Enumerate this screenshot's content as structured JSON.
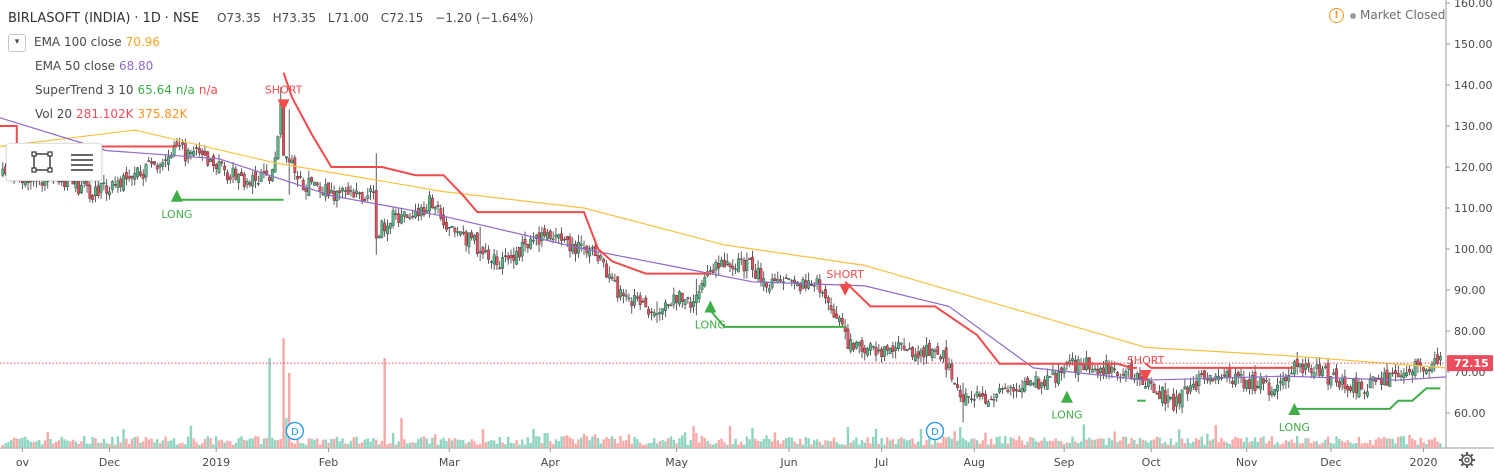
{
  "legend": {
    "symbol": "BIRLASOFT (INDIA)",
    "interval": "1D",
    "exchange": "NSE",
    "ohlc": {
      "o": "O73.35",
      "h": "H73.35",
      "l": "L71.00",
      "c": "C72.15",
      "chg": "−1.20 (−1.64%)"
    },
    "ema100": {
      "label": "EMA 100 close",
      "value": "70.96"
    },
    "ema50": {
      "label": "EMA 50 close",
      "value": "68.80"
    },
    "supertrend": {
      "label": "SuperTrend 3 10",
      "value": "65.64",
      "v2": "n/a",
      "v3": "n/a"
    },
    "vol": {
      "label": "Vol 20",
      "v1": "281.102K",
      "v2": "375.82K"
    }
  },
  "status": {
    "market": "Market Closed",
    "alert_icon": "alert-icon"
  },
  "colors": {
    "up": "#53b987",
    "down": "#eb4d5c",
    "ema100": "#f5c242",
    "ema50": "#8e6bc9",
    "st_up": "#3fae49",
    "st_down": "#f04c4c",
    "vol_up": "#8fd3c1",
    "vol_down": "#f7a9a7",
    "axis_text": "#4a4a4a",
    "last_price_bg": "#eb4d5c"
  },
  "chart_data": {
    "type": "candlestick",
    "title": "BIRLASOFT (INDIA) · 1D · NSE",
    "last_price": "72.15",
    "y_ticks": [
      "160.00",
      "150.00",
      "140.00",
      "130.00",
      "120.00",
      "110.00",
      "100.00",
      "90.00",
      "80.00",
      "70.00",
      "60.00"
    ],
    "y_range": [
      55,
      161
    ],
    "x_ticks": [
      "ov",
      "Dec",
      "2019",
      "Feb",
      "Mar",
      "Apr",
      "May",
      "Jun",
      "Jul",
      "Aug",
      "Sep",
      "Oct",
      "Nov",
      "Dec",
      "2020"
    ],
    "x_tick_days": [
      0,
      31,
      69,
      109,
      152,
      188,
      233,
      273,
      306,
      339,
      371,
      402,
      436,
      466,
      499
    ],
    "day_range": [
      -8,
      507
    ],
    "anchors": [
      [
        -8,
        118
      ],
      [
        10,
        117
      ],
      [
        25,
        114
      ],
      [
        40,
        118
      ],
      [
        55,
        124
      ],
      [
        65,
        122
      ],
      [
        80,
        116
      ],
      [
        89,
        118
      ],
      [
        92,
        135
      ],
      [
        93,
        124
      ],
      [
        99,
        116
      ],
      [
        115,
        113
      ],
      [
        125,
        113
      ],
      [
        126,
        104
      ],
      [
        130,
        107
      ],
      [
        140,
        109
      ],
      [
        147,
        112
      ],
      [
        150,
        106
      ],
      [
        160,
        102
      ],
      [
        170,
        96
      ],
      [
        180,
        101
      ],
      [
        186,
        104
      ],
      [
        192,
        101
      ],
      [
        205,
        99
      ],
      [
        212,
        90
      ],
      [
        225,
        85
      ],
      [
        230,
        88
      ],
      [
        240,
        87
      ],
      [
        245,
        96
      ],
      [
        258,
        96
      ],
      [
        268,
        91
      ],
      [
        283,
        91
      ],
      [
        290,
        84
      ],
      [
        295,
        76
      ],
      [
        320,
        75
      ],
      [
        328,
        74
      ],
      [
        335,
        64
      ],
      [
        345,
        63
      ],
      [
        352,
        66
      ],
      [
        365,
        68
      ],
      [
        375,
        72
      ],
      [
        390,
        71
      ],
      [
        400,
        68
      ],
      [
        410,
        62
      ],
      [
        420,
        69
      ],
      [
        435,
        68
      ],
      [
        445,
        66
      ],
      [
        455,
        72
      ],
      [
        465,
        69
      ],
      [
        475,
        66
      ],
      [
        485,
        68
      ],
      [
        495,
        71
      ],
      [
        507,
        73
      ]
    ],
    "spikes": [
      [
        92,
        4,
        -1
      ],
      [
        95,
        12,
        -8
      ],
      [
        126,
        9,
        -4
      ],
      [
        163,
        6,
        -2
      ],
      [
        240,
        4,
        -3
      ],
      [
        226,
        3,
        -2
      ],
      [
        335,
        3,
        -5
      ]
    ],
    "ema100": [
      [
        -8,
        125
      ],
      [
        40,
        129
      ],
      [
        90,
        121
      ],
      [
        150,
        114
      ],
      [
        200,
        110
      ],
      [
        250,
        101
      ],
      [
        300,
        96
      ],
      [
        350,
        86
      ],
      [
        400,
        76
      ],
      [
        450,
        74
      ],
      [
        507,
        71
      ]
    ],
    "ema50": [
      [
        -8,
        132
      ],
      [
        30,
        124
      ],
      [
        70,
        122
      ],
      [
        110,
        113
      ],
      [
        150,
        108
      ],
      [
        200,
        100
      ],
      [
        230,
        96
      ],
      [
        260,
        92
      ],
      [
        300,
        91
      ],
      [
        330,
        86
      ],
      [
        360,
        71
      ],
      [
        400,
        68
      ],
      [
        450,
        69
      ],
      [
        490,
        68
      ],
      [
        507,
        68.8
      ]
    ],
    "supertrend": [
      {
        "dir": "down",
        "pts": [
          [
            -8,
            130
          ],
          [
            -2,
            130
          ],
          [
            -2,
            125
          ],
          [
            0,
            125
          ],
          [
            0,
            125
          ],
          [
            55,
            125
          ]
        ]
      },
      {
        "dir": "up",
        "pts": [
          [
            55,
            112
          ],
          [
            93,
            112
          ]
        ]
      },
      {
        "dir": "down",
        "pts": [
          [
            93,
            143
          ],
          [
            96,
            137
          ],
          [
            103,
            128
          ],
          [
            110,
            120
          ],
          [
            128,
            120
          ],
          [
            140,
            118
          ],
          [
            150,
            118
          ],
          [
            157,
            113
          ],
          [
            162,
            109
          ],
          [
            200,
            109
          ],
          [
            205,
            100
          ],
          [
            210,
            97
          ],
          [
            222,
            94
          ],
          [
            245,
            94
          ]
        ]
      },
      {
        "dir": "up",
        "pts": [
          [
            245,
            85
          ],
          [
            250,
            81
          ],
          [
            293,
            81
          ]
        ]
      },
      {
        "dir": "down",
        "pts": [
          [
            293,
            92
          ],
          [
            302,
            86
          ],
          [
            325,
            86
          ],
          [
            340,
            79
          ],
          [
            348,
            72
          ],
          [
            390,
            72
          ],
          [
            395,
            71
          ],
          [
            397,
            71
          ]
        ]
      },
      {
        "dir": "up",
        "pts": [
          [
            397,
            63
          ],
          [
            400,
            63
          ]
        ]
      },
      {
        "dir": "down",
        "pts": [
          [
            400,
            72
          ],
          [
            402,
            71
          ],
          [
            453,
            71
          ]
        ]
      },
      {
        "dir": "up",
        "pts": [
          [
            453,
            61
          ],
          [
            487,
            61
          ],
          [
            490,
            63
          ],
          [
            495,
            63
          ],
          [
            500,
            66
          ],
          [
            505,
            66
          ]
        ]
      }
    ],
    "signals": [
      {
        "type": "LONG",
        "day": 55,
        "price": 112
      },
      {
        "type": "SHORT",
        "day": 93,
        "price": 136
      },
      {
        "type": "LONG",
        "day": 245,
        "price": 85
      },
      {
        "type": "SHORT",
        "day": 293,
        "price": 91
      },
      {
        "type": "LONG",
        "day": 372,
        "price": 63
      },
      {
        "type": "SHORT",
        "day": 400,
        "price": 70
      },
      {
        "type": "LONG",
        "day": 453,
        "price": 60
      }
    ],
    "dividend_markers": [
      {
        "day": 97,
        "label": "D"
      },
      {
        "day": 325,
        "label": "D"
      }
    ],
    "volume_spikes": [
      [
        88,
        18,
        1
      ],
      [
        93,
        22,
        -1
      ],
      [
        95,
        15,
        -1
      ],
      [
        129,
        18,
        -1
      ],
      [
        135,
        6,
        -1
      ],
      [
        94,
        6,
        1
      ],
      [
        260,
        4,
        1
      ]
    ]
  }
}
